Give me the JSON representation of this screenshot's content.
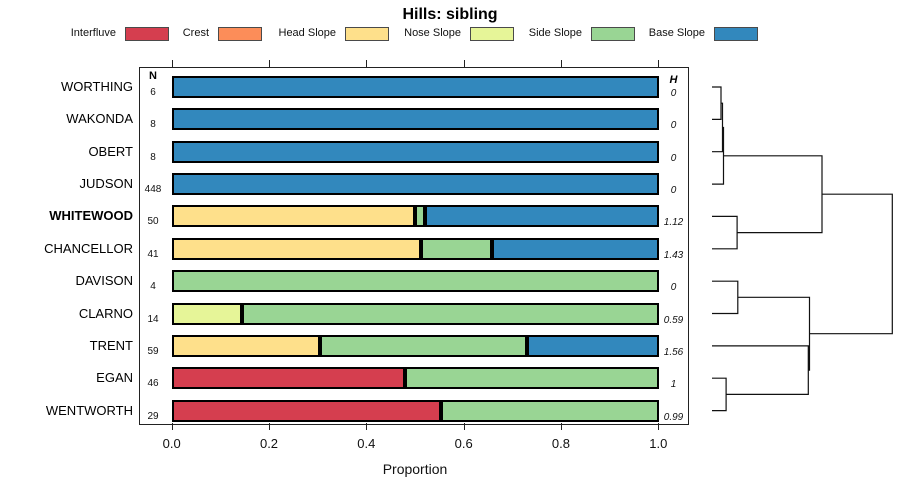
{
  "chart_data": {
    "type": "bar",
    "variant": "horizontal_stacked_proportion_with_dendrogram",
    "title": "Hills: sibling",
    "xlabel": "Proportion",
    "xlim": [
      0,
      1
    ],
    "x_ticks": [
      0,
      0.2,
      0.4,
      0.6,
      0.8,
      1.0
    ],
    "x_tick_labels": [
      "0.0",
      "0.2",
      "0.4",
      "0.6",
      "0.8",
      "1.0"
    ],
    "n_header": "N",
    "h_header": "H",
    "series_names": [
      "Interfluve",
      "Crest",
      "Head Slope",
      "Nose Slope",
      "Side Slope",
      "Base Slope"
    ],
    "legend": [
      {
        "label": "Interfluve",
        "color": "#d53e4f"
      },
      {
        "label": "Crest",
        "color": "#fc8d59"
      },
      {
        "label": "Head Slope",
        "color": "#fee08b"
      },
      {
        "label": "Nose Slope",
        "color": "#e6f598"
      },
      {
        "label": "Side Slope",
        "color": "#99d594"
      },
      {
        "label": "Base Slope",
        "color": "#3288bd"
      }
    ],
    "rows": [
      {
        "label": "WORTHING",
        "bold": false,
        "n": "6",
        "h": "0",
        "segments": [
          {
            "series": "Base Slope",
            "value": 1
          }
        ]
      },
      {
        "label": "WAKONDA",
        "bold": false,
        "n": "8",
        "h": "0",
        "segments": [
          {
            "series": "Base Slope",
            "value": 1
          }
        ]
      },
      {
        "label": "OBERT",
        "bold": false,
        "n": "8",
        "h": "0",
        "segments": [
          {
            "series": "Base Slope",
            "value": 1
          }
        ]
      },
      {
        "label": "JUDSON",
        "bold": false,
        "n": "448",
        "h": "0",
        "segments": [
          {
            "series": "Base Slope",
            "value": 1
          }
        ]
      },
      {
        "label": "WHITEWOOD",
        "bold": true,
        "n": "50",
        "h": "1.12",
        "segments": [
          {
            "series": "Head Slope",
            "value": 0.5
          },
          {
            "series": "Side Slope",
            "value": 0.02
          },
          {
            "series": "Base Slope",
            "value": 0.48
          }
        ]
      },
      {
        "label": "CHANCELLOR",
        "bold": false,
        "n": "41",
        "h": "1.43",
        "segments": [
          {
            "series": "Head Slope",
            "value": 0.512
          },
          {
            "series": "Side Slope",
            "value": 0.146
          },
          {
            "series": "Base Slope",
            "value": 0.342
          }
        ]
      },
      {
        "label": "DAVISON",
        "bold": false,
        "n": "4",
        "h": "0",
        "segments": [
          {
            "series": "Side Slope",
            "value": 1
          }
        ]
      },
      {
        "label": "CLARNO",
        "bold": false,
        "n": "14",
        "h": "0.59",
        "segments": [
          {
            "series": "Nose Slope",
            "value": 0.143
          },
          {
            "series": "Side Slope",
            "value": 0.857
          }
        ]
      },
      {
        "label": "TRENT",
        "bold": false,
        "n": "59",
        "h": "1.56",
        "segments": [
          {
            "series": "Head Slope",
            "value": 0.305
          },
          {
            "series": "Side Slope",
            "value": 0.424
          },
          {
            "series": "Base Slope",
            "value": 0.271
          }
        ]
      },
      {
        "label": "EGAN",
        "bold": false,
        "n": "46",
        "h": "1",
        "segments": [
          {
            "series": "Interfluve",
            "value": 0.478
          },
          {
            "series": "Side Slope",
            "value": 0.522
          }
        ]
      },
      {
        "label": "WENTWORTH",
        "bold": false,
        "n": "29",
        "h": "0.99",
        "segments": [
          {
            "series": "Interfluve",
            "value": 0.552
          },
          {
            "series": "Side Slope",
            "value": 0.448
          }
        ]
      }
    ],
    "dendrogram": {
      "leaves": [
        "WORTHING",
        "WAKONDA",
        "OBERT",
        "JUDSON",
        "WHITEWOOD",
        "CHANCELLOR",
        "DAVISON",
        "CLARNO",
        "TRENT",
        "EGAN",
        "WENTWORTH"
      ],
      "merges": [
        {
          "id": "M1",
          "a": "L0",
          "b": "L1",
          "height": 0.05
        },
        {
          "id": "M2",
          "a": "M1",
          "b": "L2",
          "height": 0.058
        },
        {
          "id": "M3",
          "a": "M2",
          "b": "L3",
          "height": 0.064
        },
        {
          "id": "M4",
          "a": "L4",
          "b": "L5",
          "height": 0.139
        },
        {
          "id": "M5",
          "a": "M3",
          "b": "M4",
          "height": 0.61
        },
        {
          "id": "M6",
          "a": "L6",
          "b": "L7",
          "height": 0.143
        },
        {
          "id": "M7",
          "a": "L9",
          "b": "L10",
          "height": 0.078
        },
        {
          "id": "M8",
          "a": "L8",
          "b": "M7",
          "height": 0.534
        },
        {
          "id": "M9",
          "a": "M6",
          "b": "M8",
          "height": 0.541
        },
        {
          "id": "M10",
          "a": "M5",
          "b": "M9",
          "height": 1.0
        }
      ]
    }
  }
}
